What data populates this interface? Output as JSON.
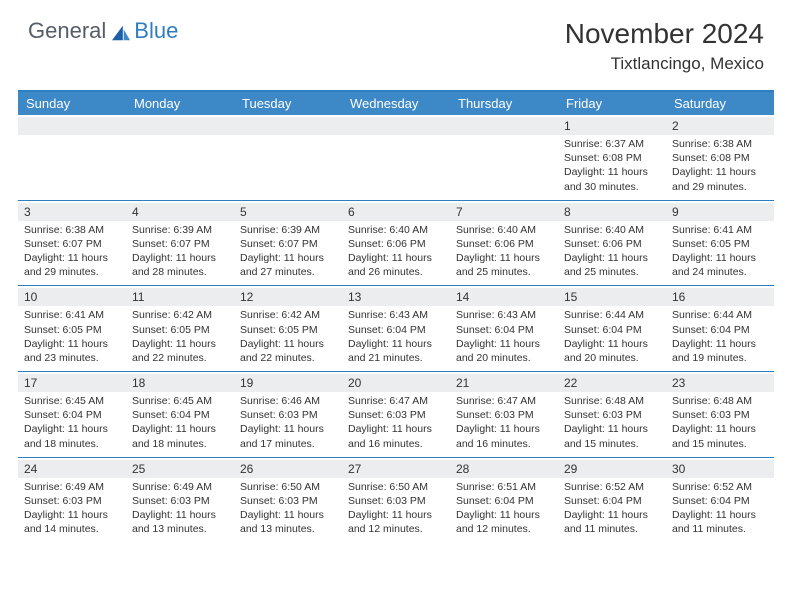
{
  "brand": {
    "general": "General",
    "blue": "Blue"
  },
  "title": "November 2024",
  "location": "Tixtlancingo, Mexico",
  "colors": {
    "header_bg": "#3d88c7",
    "header_border": "#2f7ec2",
    "daynum_bg": "#ecedef",
    "text": "#333333",
    "brand_gray": "#555d66",
    "brand_blue": "#2f7ec2",
    "page_bg": "#ffffff"
  },
  "typography": {
    "month_title_pt": 28,
    "location_pt": 17,
    "day_header_pt": 13,
    "daynum_pt": 12,
    "body_pt": 10.5
  },
  "day_names": [
    "Sunday",
    "Monday",
    "Tuesday",
    "Wednesday",
    "Thursday",
    "Friday",
    "Saturday"
  ],
  "weeks": [
    [
      null,
      null,
      null,
      null,
      null,
      {
        "n": "1",
        "sr": "Sunrise: 6:37 AM",
        "ss": "Sunset: 6:08 PM",
        "d1": "Daylight: 11 hours",
        "d2": "and 30 minutes."
      },
      {
        "n": "2",
        "sr": "Sunrise: 6:38 AM",
        "ss": "Sunset: 6:08 PM",
        "d1": "Daylight: 11 hours",
        "d2": "and 29 minutes."
      }
    ],
    [
      {
        "n": "3",
        "sr": "Sunrise: 6:38 AM",
        "ss": "Sunset: 6:07 PM",
        "d1": "Daylight: 11 hours",
        "d2": "and 29 minutes."
      },
      {
        "n": "4",
        "sr": "Sunrise: 6:39 AM",
        "ss": "Sunset: 6:07 PM",
        "d1": "Daylight: 11 hours",
        "d2": "and 28 minutes."
      },
      {
        "n": "5",
        "sr": "Sunrise: 6:39 AM",
        "ss": "Sunset: 6:07 PM",
        "d1": "Daylight: 11 hours",
        "d2": "and 27 minutes."
      },
      {
        "n": "6",
        "sr": "Sunrise: 6:40 AM",
        "ss": "Sunset: 6:06 PM",
        "d1": "Daylight: 11 hours",
        "d2": "and 26 minutes."
      },
      {
        "n": "7",
        "sr": "Sunrise: 6:40 AM",
        "ss": "Sunset: 6:06 PM",
        "d1": "Daylight: 11 hours",
        "d2": "and 25 minutes."
      },
      {
        "n": "8",
        "sr": "Sunrise: 6:40 AM",
        "ss": "Sunset: 6:06 PM",
        "d1": "Daylight: 11 hours",
        "d2": "and 25 minutes."
      },
      {
        "n": "9",
        "sr": "Sunrise: 6:41 AM",
        "ss": "Sunset: 6:05 PM",
        "d1": "Daylight: 11 hours",
        "d2": "and 24 minutes."
      }
    ],
    [
      {
        "n": "10",
        "sr": "Sunrise: 6:41 AM",
        "ss": "Sunset: 6:05 PM",
        "d1": "Daylight: 11 hours",
        "d2": "and 23 minutes."
      },
      {
        "n": "11",
        "sr": "Sunrise: 6:42 AM",
        "ss": "Sunset: 6:05 PM",
        "d1": "Daylight: 11 hours",
        "d2": "and 22 minutes."
      },
      {
        "n": "12",
        "sr": "Sunrise: 6:42 AM",
        "ss": "Sunset: 6:05 PM",
        "d1": "Daylight: 11 hours",
        "d2": "and 22 minutes."
      },
      {
        "n": "13",
        "sr": "Sunrise: 6:43 AM",
        "ss": "Sunset: 6:04 PM",
        "d1": "Daylight: 11 hours",
        "d2": "and 21 minutes."
      },
      {
        "n": "14",
        "sr": "Sunrise: 6:43 AM",
        "ss": "Sunset: 6:04 PM",
        "d1": "Daylight: 11 hours",
        "d2": "and 20 minutes."
      },
      {
        "n": "15",
        "sr": "Sunrise: 6:44 AM",
        "ss": "Sunset: 6:04 PM",
        "d1": "Daylight: 11 hours",
        "d2": "and 20 minutes."
      },
      {
        "n": "16",
        "sr": "Sunrise: 6:44 AM",
        "ss": "Sunset: 6:04 PM",
        "d1": "Daylight: 11 hours",
        "d2": "and 19 minutes."
      }
    ],
    [
      {
        "n": "17",
        "sr": "Sunrise: 6:45 AM",
        "ss": "Sunset: 6:04 PM",
        "d1": "Daylight: 11 hours",
        "d2": "and 18 minutes."
      },
      {
        "n": "18",
        "sr": "Sunrise: 6:45 AM",
        "ss": "Sunset: 6:04 PM",
        "d1": "Daylight: 11 hours",
        "d2": "and 18 minutes."
      },
      {
        "n": "19",
        "sr": "Sunrise: 6:46 AM",
        "ss": "Sunset: 6:03 PM",
        "d1": "Daylight: 11 hours",
        "d2": "and 17 minutes."
      },
      {
        "n": "20",
        "sr": "Sunrise: 6:47 AM",
        "ss": "Sunset: 6:03 PM",
        "d1": "Daylight: 11 hours",
        "d2": "and 16 minutes."
      },
      {
        "n": "21",
        "sr": "Sunrise: 6:47 AM",
        "ss": "Sunset: 6:03 PM",
        "d1": "Daylight: 11 hours",
        "d2": "and 16 minutes."
      },
      {
        "n": "22",
        "sr": "Sunrise: 6:48 AM",
        "ss": "Sunset: 6:03 PM",
        "d1": "Daylight: 11 hours",
        "d2": "and 15 minutes."
      },
      {
        "n": "23",
        "sr": "Sunrise: 6:48 AM",
        "ss": "Sunset: 6:03 PM",
        "d1": "Daylight: 11 hours",
        "d2": "and 15 minutes."
      }
    ],
    [
      {
        "n": "24",
        "sr": "Sunrise: 6:49 AM",
        "ss": "Sunset: 6:03 PM",
        "d1": "Daylight: 11 hours",
        "d2": "and 14 minutes."
      },
      {
        "n": "25",
        "sr": "Sunrise: 6:49 AM",
        "ss": "Sunset: 6:03 PM",
        "d1": "Daylight: 11 hours",
        "d2": "and 13 minutes."
      },
      {
        "n": "26",
        "sr": "Sunrise: 6:50 AM",
        "ss": "Sunset: 6:03 PM",
        "d1": "Daylight: 11 hours",
        "d2": "and 13 minutes."
      },
      {
        "n": "27",
        "sr": "Sunrise: 6:50 AM",
        "ss": "Sunset: 6:03 PM",
        "d1": "Daylight: 11 hours",
        "d2": "and 12 minutes."
      },
      {
        "n": "28",
        "sr": "Sunrise: 6:51 AM",
        "ss": "Sunset: 6:04 PM",
        "d1": "Daylight: 11 hours",
        "d2": "and 12 minutes."
      },
      {
        "n": "29",
        "sr": "Sunrise: 6:52 AM",
        "ss": "Sunset: 6:04 PM",
        "d1": "Daylight: 11 hours",
        "d2": "and 11 minutes."
      },
      {
        "n": "30",
        "sr": "Sunrise: 6:52 AM",
        "ss": "Sunset: 6:04 PM",
        "d1": "Daylight: 11 hours",
        "d2": "and 11 minutes."
      }
    ]
  ]
}
